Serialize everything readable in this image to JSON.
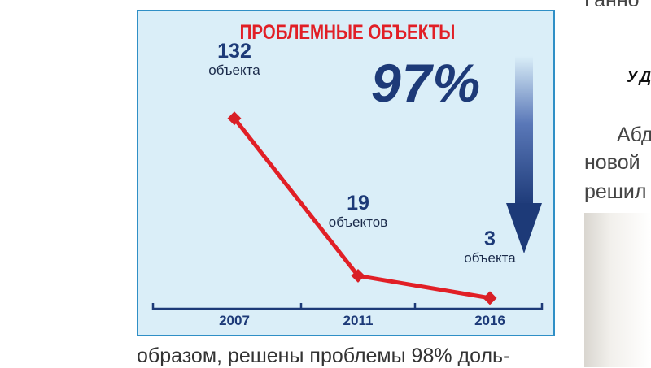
{
  "chart_data": {
    "type": "line",
    "title": "ПРОБЛЕМНЫЕ ОБЪЕКТЫ",
    "categories": [
      "2007",
      "2011",
      "2016"
    ],
    "values": [
      132,
      19,
      3
    ],
    "data_labels": [
      {
        "number": "132",
        "unit": "объекта"
      },
      {
        "number": "19",
        "unit": "объектов"
      },
      {
        "number": "3",
        "unit": "объекта"
      }
    ],
    "annotation": "97%",
    "annotation_arrow": "down",
    "ylim": [
      0,
      140
    ],
    "grid": false,
    "line_color": "#e11f26",
    "marker_color": "#d81f26"
  },
  "caption": "образом, решены проблемы 98% доль-",
  "right_column": {
    "line1": "Ганно",
    "heading": "УД",
    "line2": "Абд",
    "line3": "новой",
    "line4": "решил"
  },
  "colors": {
    "frame_border": "#2f8fc6",
    "frame_bg": "#daeef8",
    "navy": "#1d3a78",
    "red": "#e11f26"
  }
}
